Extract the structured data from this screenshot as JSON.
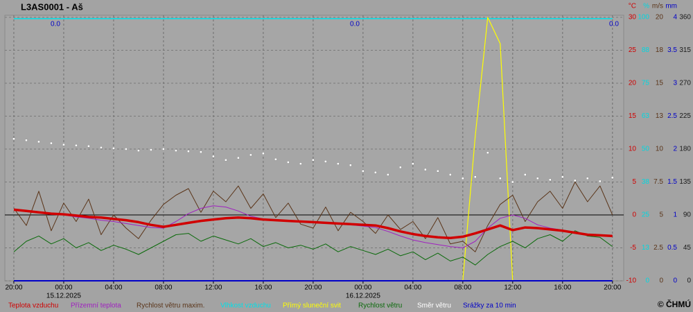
{
  "chart_data": {
    "type": "line",
    "title": "L3AS0001 - Aš",
    "copyright": "© ČHMÚ",
    "x": [
      0,
      1,
      2,
      3,
      4,
      5,
      6,
      7,
      8,
      9,
      10,
      11,
      12,
      13,
      14,
      15,
      16,
      17,
      18,
      19,
      20,
      21,
      22,
      23,
      24,
      25,
      26,
      27,
      28,
      29,
      30,
      31,
      32,
      33,
      34,
      35,
      36,
      37,
      38,
      39,
      40,
      41,
      42,
      43,
      44,
      45,
      46,
      47,
      48
    ],
    "xlim": [
      -0.72,
      48.9
    ],
    "xticks": [
      {
        "value": 0,
        "label": "20:00"
      },
      {
        "value": 4,
        "label": "00:00"
      },
      {
        "value": 8,
        "label": "04:00"
      },
      {
        "value": 12,
        "label": "08:00"
      },
      {
        "value": 16,
        "label": "12:00"
      },
      {
        "value": 20,
        "label": "16:00"
      },
      {
        "value": 24,
        "label": "20:00"
      },
      {
        "value": 28,
        "label": "00:00"
      },
      {
        "value": 32,
        "label": "04:00"
      },
      {
        "value": 36,
        "label": "08:00"
      },
      {
        "value": 40,
        "label": "12:00"
      },
      {
        "value": 44,
        "label": "16:00"
      },
      {
        "value": 48,
        "label": "20:00"
      }
    ],
    "date_labels": [
      {
        "value": 4,
        "label": "15.12.2025"
      },
      {
        "value": 28,
        "label": "16.12.2025"
      }
    ],
    "grid": true,
    "reference_line": 0,
    "axes": [
      {
        "unit": "°C",
        "color": "#d00000",
        "lim": [
          -10,
          30
        ],
        "ticks": [
          -10,
          -5,
          0,
          5,
          10,
          15,
          20,
          25,
          30
        ]
      },
      {
        "unit": "%",
        "color": "#00d8e0",
        "lim": [
          0,
          100
        ],
        "ticks": [
          0,
          {
            "value": 12.5,
            "label": "13"
          },
          25,
          {
            "value": 37.5,
            "label": "38"
          },
          50,
          {
            "value": 62.5,
            "label": "63"
          },
          75,
          {
            "value": 87.5,
            "label": "88"
          },
          100
        ]
      },
      {
        "unit": "m/s",
        "color": "#5a3418",
        "lim": [
          0,
          20
        ],
        "ticks": [
          0,
          2.5,
          5,
          7.5,
          10,
          {
            "value": 12.5,
            "label": "13"
          },
          15,
          {
            "value": 17.5,
            "label": "18"
          },
          20
        ]
      },
      {
        "unit": "mm",
        "color": "#0000c8",
        "lim": [
          0,
          4
        ],
        "ticks": [
          0,
          0.5,
          1,
          1.5,
          2,
          2.5,
          3,
          3.5,
          4
        ]
      },
      {
        "color": "#1a1a1a",
        "lim": [
          0,
          360
        ],
        "ticks": [
          0,
          45,
          90,
          135,
          180,
          225,
          270,
          315,
          360
        ]
      }
    ],
    "precip_totals": {
      "values": [
        0,
        0,
        0
      ],
      "value_labels": [
        "0.0",
        "0.0",
        "0.0"
      ],
      "color": "#0000c8"
    },
    "series": [
      {
        "name": "Teplota vzduchu",
        "color": "#d00000",
        "axis": 0,
        "style": "line",
        "width": 3.5,
        "values": [
          0.8,
          0.6,
          0.4,
          0.2,
          0.1,
          -0.1,
          -0.3,
          -0.4,
          -0.6,
          -0.8,
          -1.1,
          -1.5,
          -1.8,
          -1.5,
          -1.2,
          -0.9,
          -0.7,
          -0.5,
          -0.4,
          -0.5,
          -0.7,
          -0.8,
          -0.9,
          -1.0,
          -1.1,
          -1.2,
          -1.3,
          -1.4,
          -1.5,
          -1.6,
          -2.0,
          -2.5,
          -2.9,
          -3.2,
          -3.4,
          -3.5,
          -3.3,
          -2.8,
          -2.2,
          -1.6,
          -2.3,
          -1.9,
          -2.0,
          -2.2,
          -2.4,
          -2.7,
          -3.0,
          -3.1,
          -3.2
        ]
      },
      {
        "name": "Přízemní teplota",
        "color": "#a020c0",
        "axis": 0,
        "style": "line",
        "width": 1,
        "values": [
          0.7,
          0.5,
          0.3,
          0.1,
          0,
          -0.3,
          -0.5,
          -0.8,
          -1.0,
          -1.3,
          -1.6,
          -1.9,
          -2.0,
          -1.0,
          0.2,
          1.0,
          1.4,
          1.2,
          0.6,
          -0.2,
          -0.6,
          -0.8,
          -1.0,
          -1.1,
          -1.2,
          -1.3,
          -1.4,
          -1.5,
          -1.7,
          -1.9,
          -2.5,
          -3.2,
          -3.8,
          -4.2,
          -4.5,
          -4.8,
          -5.0,
          -4.0,
          -2.0,
          -0.5,
          0.0,
          -0.5,
          -1.5,
          -2.0,
          -2.3,
          -2.6,
          -2.9,
          -3.1,
          -3.2
        ]
      },
      {
        "name": "Rychlost větru maxim.",
        "color": "#5a3418",
        "axis": 2,
        "style": "line",
        "width": 1,
        "values": [
          5.5,
          4.2,
          6.8,
          3.8,
          5.9,
          4.5,
          6.2,
          3.5,
          5.0,
          4.0,
          3.2,
          4.6,
          5.8,
          6.5,
          7.0,
          5.2,
          6.8,
          6.0,
          7.2,
          5.5,
          6.6,
          4.8,
          5.9,
          4.3,
          4.0,
          5.6,
          3.8,
          5.2,
          4.5,
          3.6,
          5.0,
          3.9,
          4.5,
          3.2,
          4.8,
          2.8,
          3.0,
          2.2,
          4.2,
          5.8,
          6.5,
          4.5,
          6.0,
          6.8,
          5.5,
          7.5,
          6.0,
          7.2,
          5.0
        ]
      },
      {
        "name": "Vlhkost vzduchu",
        "color": "#00e0e8",
        "axis": 1,
        "style": "line",
        "width": 1.5,
        "values": [
          99.5,
          99.5,
          99.5,
          99.5,
          99.5,
          99.5,
          99.5,
          99.5,
          99.5,
          99.5,
          99.5,
          99.5,
          99.5,
          99.5,
          99.5,
          99.5,
          99.5,
          99.5,
          99.5,
          99.5,
          99.5,
          99.5,
          99.5,
          99.5,
          99.5,
          99.5,
          99.5,
          99.5,
          99.5,
          99.5,
          99.5,
          99.5,
          99.5,
          99.5,
          99.5,
          99.5,
          99.5,
          99.5,
          99.5,
          99.5,
          99.5,
          99.5,
          99.5,
          99.5,
          99.5,
          99.5,
          99.5,
          99.5,
          99.5
        ]
      },
      {
        "name": "Přímý sluneční svit",
        "color": "#ffff00",
        "axis": 1,
        "style": "line",
        "width": 1.2,
        "values": [
          0,
          0,
          0,
          0,
          0,
          0,
          0,
          0,
          0,
          0,
          0,
          0,
          0,
          0,
          0,
          0,
          0,
          0,
          0,
          0,
          0,
          0,
          0,
          0,
          0,
          0,
          0,
          0,
          0,
          0,
          0,
          0,
          0,
          0,
          0,
          0,
          0,
          55,
          100,
          90,
          0,
          0,
          0,
          0,
          0,
          0,
          0,
          0,
          0
        ]
      },
      {
        "name": "Rychlost větru",
        "color": "#0a6a0a",
        "axis": 2,
        "style": "line",
        "width": 1,
        "values": [
          2.2,
          3.0,
          3.4,
          2.8,
          3.2,
          2.5,
          2.9,
          2.3,
          2.7,
          2.4,
          2.0,
          2.5,
          3.0,
          3.5,
          3.6,
          3.0,
          3.4,
          3.1,
          2.8,
          3.2,
          2.6,
          2.9,
          2.5,
          2.7,
          2.4,
          2.8,
          2.2,
          2.6,
          2.3,
          2.0,
          2.4,
          1.9,
          2.2,
          1.6,
          2.1,
          1.5,
          1.8,
          1.2,
          2.0,
          2.6,
          3.0,
          2.5,
          3.2,
          3.5,
          3.0,
          3.8,
          3.4,
          3.3,
          2.6
        ]
      },
      {
        "name": "Směr větru",
        "color": "#ffffff",
        "axis": 4,
        "style": "dots",
        "width": 1,
        "values": [
          194,
          192,
          190,
          188,
          186,
          185,
          184,
          182,
          181,
          180,
          178,
          179,
          180,
          178,
          177,
          176,
          170,
          165,
          168,
          172,
          174,
          166,
          162,
          160,
          165,
          163,
          160,
          158,
          150,
          148,
          145,
          155,
          160,
          152,
          150,
          145,
          140,
          142,
          175,
          140,
          135,
          145,
          140,
          138,
          142,
          137,
          140,
          136,
          141
        ]
      },
      {
        "name": "Srážky za 10 min",
        "color": "#0000c8",
        "axis": 3,
        "style": "line",
        "width": 2,
        "values": [
          0,
          0,
          0,
          0,
          0,
          0,
          0,
          0,
          0,
          0,
          0,
          0,
          0,
          0,
          0,
          0,
          0,
          0,
          0,
          0,
          0,
          0,
          0,
          0,
          0,
          0,
          0,
          0,
          0,
          0,
          0,
          0,
          0,
          0,
          0,
          0,
          0,
          0,
          0,
          0,
          0,
          0,
          0,
          0,
          0,
          0,
          0,
          0,
          0
        ]
      }
    ]
  }
}
